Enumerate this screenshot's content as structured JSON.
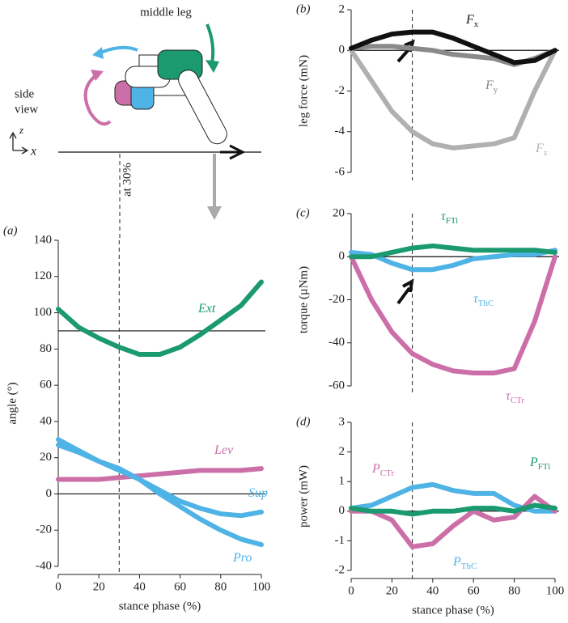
{
  "schematic": {
    "title": "middle leg",
    "view": [
      "side",
      "view"
    ],
    "axis_z": "z",
    "axis_x": "x",
    "annotation": "at 30%"
  },
  "chart_data": [
    {
      "type": "line",
      "panel_label": "(a)",
      "y_label": "angle (°)",
      "x_label": "stance phase (%)",
      "x": [
        0,
        10,
        20,
        30,
        40,
        50,
        60,
        70,
        80,
        90,
        100
      ],
      "xlim": [
        0,
        100
      ],
      "xticks": [
        0,
        20,
        40,
        60,
        80,
        100
      ],
      "ylim": [
        -40,
        140
      ],
      "yticks": [
        -40,
        -20,
        0,
        20,
        40,
        60,
        80,
        100,
        120,
        140
      ],
      "hlines": [
        90,
        0
      ],
      "vline": 30,
      "series": [
        {
          "name": "Ext",
          "color": "#1a9a6e",
          "values": [
            102,
            92,
            86,
            81,
            77,
            77,
            81,
            88,
            96,
            104,
            117
          ]
        },
        {
          "name": "Lev",
          "color": "#cc6fa8",
          "values": [
            8,
            8,
            8,
            9,
            10,
            11,
            12,
            13,
            13,
            13,
            14
          ]
        },
        {
          "name": "Sup",
          "color": "#4fb3e6",
          "values": [
            30,
            24,
            18,
            13,
            8,
            2,
            -4,
            -8,
            -11,
            -12,
            -10
          ]
        },
        {
          "name": "Pro",
          "color": "#4fb3e6",
          "values": [
            27,
            23,
            18,
            14,
            8,
            0,
            -7,
            -14,
            -20,
            -25,
            -28
          ]
        }
      ]
    },
    {
      "type": "line",
      "panel_label": "(b)",
      "y_label": "leg force (mN)",
      "x": [
        0,
        10,
        20,
        30,
        40,
        50,
        60,
        70,
        80,
        90,
        100
      ],
      "xlim": [
        0,
        100
      ],
      "ylim": [
        -6,
        2
      ],
      "yticks": [
        -6,
        -4,
        -2,
        0,
        2
      ],
      "hlines": [
        0
      ],
      "vline": 30,
      "series": [
        {
          "name": "F",
          "sub": "z",
          "color": "#b0b0b0",
          "values": [
            0,
            -1.5,
            -3,
            -4,
            -4.6,
            -4.8,
            -4.7,
            -4.6,
            -4.3,
            -2,
            0
          ]
        },
        {
          "name": "F",
          "sub": "y",
          "color": "#8a8a8a",
          "values": [
            0.1,
            0.2,
            0.2,
            0.1,
            0,
            -0.2,
            -0.3,
            -0.4,
            -0.7,
            -0.4,
            0
          ]
        },
        {
          "name": "F",
          "sub": "x",
          "color": "#111111",
          "values": [
            0.1,
            0.5,
            0.8,
            0.9,
            0.9,
            0.6,
            0.2,
            -0.2,
            -0.6,
            -0.5,
            0
          ]
        }
      ]
    },
    {
      "type": "line",
      "panel_label": "(c)",
      "y_label": "torque (µNm)",
      "x": [
        0,
        10,
        20,
        30,
        40,
        50,
        60,
        70,
        80,
        90,
        100
      ],
      "xlim": [
        0,
        100
      ],
      "ylim": [
        -60,
        20
      ],
      "yticks": [
        -60,
        -40,
        -20,
        0,
        20
      ],
      "hlines": [
        0
      ],
      "vline": 30,
      "series": [
        {
          "name": "τ",
          "sub": "CTr",
          "color": "#cc6fa8",
          "values": [
            0,
            -20,
            -35,
            -45,
            -50,
            -53,
            -54,
            -54,
            -52,
            -30,
            0
          ]
        },
        {
          "name": "τ",
          "sub": "ThC",
          "color": "#4fb3e6",
          "values": [
            2,
            1,
            -3,
            -6,
            -6,
            -4,
            -1,
            0,
            1,
            1,
            3
          ]
        },
        {
          "name": "τ",
          "sub": "FTi",
          "color": "#1a9a6e",
          "values": [
            0,
            0,
            2,
            4,
            5,
            4,
            3,
            3,
            3,
            3,
            2
          ]
        }
      ]
    },
    {
      "type": "line",
      "panel_label": "(d)",
      "y_label": "power (mW)",
      "x_label": "stance phase (%)",
      "x": [
        0,
        10,
        20,
        30,
        40,
        50,
        60,
        70,
        80,
        90,
        100
      ],
      "xlim": [
        0,
        100
      ],
      "xticks": [
        0,
        20,
        40,
        60,
        80,
        100
      ],
      "ylim": [
        -2,
        3
      ],
      "yticks": [
        -2,
        -1,
        0,
        1,
        2,
        3
      ],
      "hlines": [
        0
      ],
      "vline": 30,
      "series": [
        {
          "name": "P",
          "sub": "ThC",
          "color": "#4fb3e6",
          "values": [
            0.1,
            0.2,
            0.5,
            0.8,
            0.9,
            0.7,
            0.6,
            0.6,
            0.2,
            0,
            0
          ]
        },
        {
          "name": "P",
          "sub": "CTr",
          "color": "#cc6fa8",
          "values": [
            0,
            0,
            -0.3,
            -1.2,
            -1.1,
            -0.5,
            0,
            -0.3,
            -0.2,
            0.5,
            0
          ]
        },
        {
          "name": "P",
          "sub": "FTi",
          "color": "#1a9a6e",
          "values": [
            0.1,
            0,
            0,
            -0.1,
            0,
            0,
            0.1,
            0.1,
            0,
            0.2,
            0.1
          ]
        }
      ]
    }
  ]
}
